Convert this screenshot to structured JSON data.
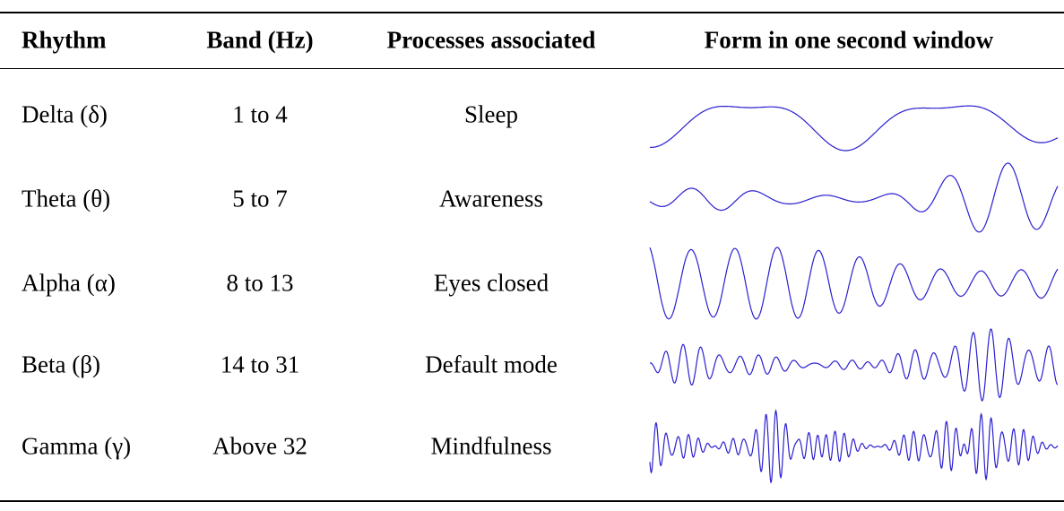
{
  "table": {
    "header": [
      "Rhythm",
      "Band (Hz)",
      "Processes associated",
      "Form in one second window"
    ],
    "rows": [
      [
        "Delta (δ)",
        "1 to 4",
        "Sleep"
      ],
      [
        "Theta (θ)",
        "5 to 7",
        "Awareness"
      ],
      [
        "Alpha (α)",
        "8 to 13",
        "Eyes closed"
      ],
      [
        "Beta (β)",
        "14 to 31",
        "Default mode"
      ],
      [
        "Gamma (γ)",
        "Above 32",
        "Mindfulness"
      ]
    ]
  }
}
